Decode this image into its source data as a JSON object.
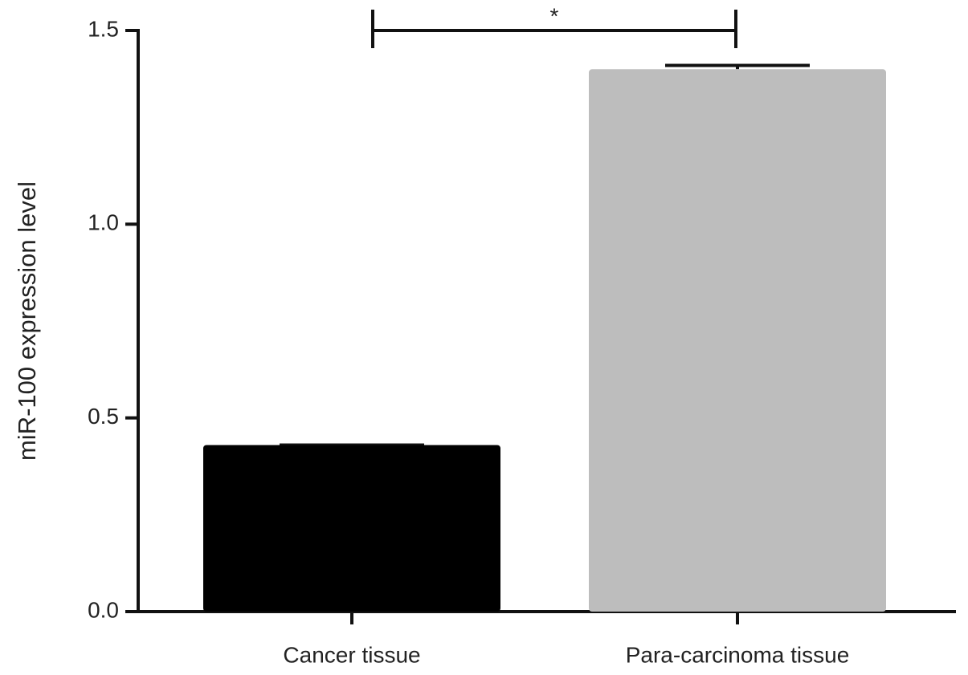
{
  "chart_data": {
    "type": "bar",
    "ylabel": "miR-100 expression level",
    "categories": [
      "Cancer tissue",
      "Para-carcinoma tissue"
    ],
    "values": [
      0.43,
      1.4
    ],
    "errors": [
      0,
      0.01
    ],
    "colors": [
      "#000000",
      "#bdbdbd"
    ],
    "ylim": [
      0,
      1.5
    ],
    "yticks": [
      {
        "value": 0,
        "label": "0.0"
      },
      {
        "value": 0.5,
        "label": "0.5"
      },
      {
        "value": 1,
        "label": "1.0"
      },
      {
        "value": 1.5,
        "label": "1.5"
      }
    ],
    "annotation": "*"
  }
}
